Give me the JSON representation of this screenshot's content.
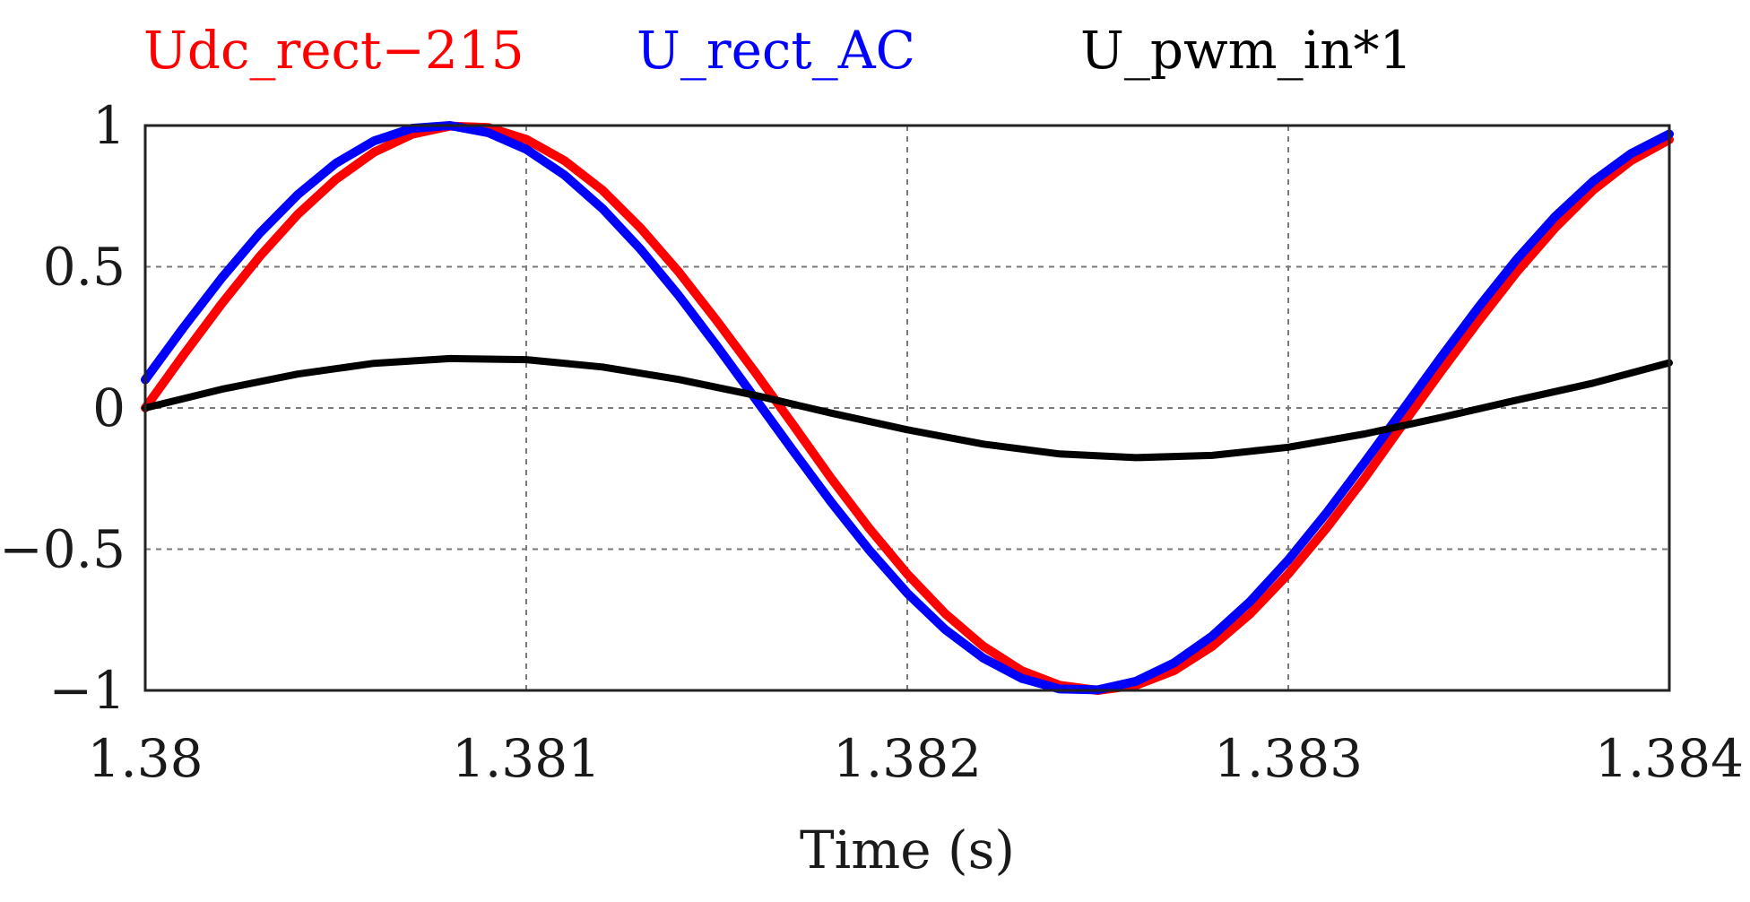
{
  "chart_data": {
    "type": "line",
    "title": "",
    "xlabel": "Time (s)",
    "ylabel": "",
    "xlim": [
      1.38,
      1.384
    ],
    "ylim": [
      -1,
      1
    ],
    "xticks": [
      1.38,
      1.381,
      1.382,
      1.383,
      1.384
    ],
    "xtick_labels": [
      "1.38",
      "1.381",
      "1.382",
      "1.383",
      "1.384"
    ],
    "yticks": [
      1,
      0.5,
      0,
      -0.5,
      -1
    ],
    "ytick_labels": [
      "1",
      "0.5",
      "0",
      "−0.5",
      "−1"
    ],
    "grid": true,
    "legend_position": "top",
    "series": [
      {
        "name": "Udc_rect−215",
        "color": "#ff0000",
        "x": [
          1.38,
          1.3801,
          1.3802,
          1.3803,
          1.3804,
          1.3805,
          1.3806,
          1.3807,
          1.3808,
          1.3809,
          1.381,
          1.3811,
          1.3812,
          1.3813,
          1.3814,
          1.3815,
          1.3816,
          1.3817,
          1.3818,
          1.3819,
          1.382,
          1.3821,
          1.3822,
          1.3823,
          1.3824,
          1.3825,
          1.3826,
          1.3827,
          1.3828,
          1.3829,
          1.383,
          1.3831,
          1.3832,
          1.3833,
          1.3834,
          1.3835,
          1.3836,
          1.3837,
          1.3838,
          1.3839,
          1.384
        ],
        "y": [
          0.0,
          0.187,
          0.368,
          0.536,
          0.685,
          0.809,
          0.905,
          0.969,
          0.998,
          0.993,
          0.951,
          0.876,
          0.771,
          0.637,
          0.482,
          0.309,
          0.128,
          -0.059,
          -0.249,
          -0.426,
          -0.588,
          -0.729,
          -0.844,
          -0.93,
          -0.982,
          -1.0,
          -0.982,
          -0.93,
          -0.844,
          -0.729,
          -0.588,
          -0.426,
          -0.249,
          -0.059,
          0.128,
          0.309,
          0.482,
          0.637,
          0.771,
          0.876,
          0.95
        ]
      },
      {
        "name": "U_rect_AC",
        "color": "#0000ff",
        "x": [
          1.38,
          1.3801,
          1.3802,
          1.3803,
          1.3804,
          1.3805,
          1.3806,
          1.3807,
          1.3808,
          1.3809,
          1.381,
          1.3811,
          1.3812,
          1.3813,
          1.3814,
          1.3815,
          1.3816,
          1.3817,
          1.3818,
          1.3819,
          1.382,
          1.3821,
          1.3822,
          1.3823,
          1.3824,
          1.3825,
          1.3826,
          1.3827,
          1.3828,
          1.3829,
          1.383,
          1.3831,
          1.3832,
          1.3833,
          1.3834,
          1.3835,
          1.3836,
          1.3837,
          1.3838,
          1.3839,
          1.384
        ],
        "y": [
          0.1,
          0.284,
          0.459,
          0.618,
          0.755,
          0.866,
          0.945,
          0.99,
          1.0,
          0.975,
          0.916,
          0.825,
          0.706,
          0.562,
          0.398,
          0.22,
          0.035,
          -0.151,
          -0.333,
          -0.503,
          -0.656,
          -0.785,
          -0.886,
          -0.957,
          -0.995,
          -0.998,
          -0.968,
          -0.903,
          -0.808,
          -0.685,
          -0.538,
          -0.372,
          -0.193,
          -0.008,
          0.178,
          0.358,
          0.527,
          0.677,
          0.803,
          0.901,
          0.97
        ]
      },
      {
        "name": "U_pwm_in*1",
        "color": "#000000",
        "x": [
          1.38,
          1.3802,
          1.3804,
          1.3806,
          1.3808,
          1.381,
          1.3812,
          1.3814,
          1.3816,
          1.3818,
          1.382,
          1.3822,
          1.3824,
          1.3826,
          1.3828,
          1.383,
          1.3832,
          1.3834,
          1.3836,
          1.3838,
          1.384
        ],
        "y": [
          0.0,
          0.066,
          0.12,
          0.158,
          0.175,
          0.171,
          0.145,
          0.101,
          0.045,
          -0.018,
          -0.077,
          -0.128,
          -0.163,
          -0.176,
          -0.168,
          -0.139,
          -0.092,
          -0.034,
          0.028,
          0.088,
          0.16
        ]
      }
    ]
  }
}
